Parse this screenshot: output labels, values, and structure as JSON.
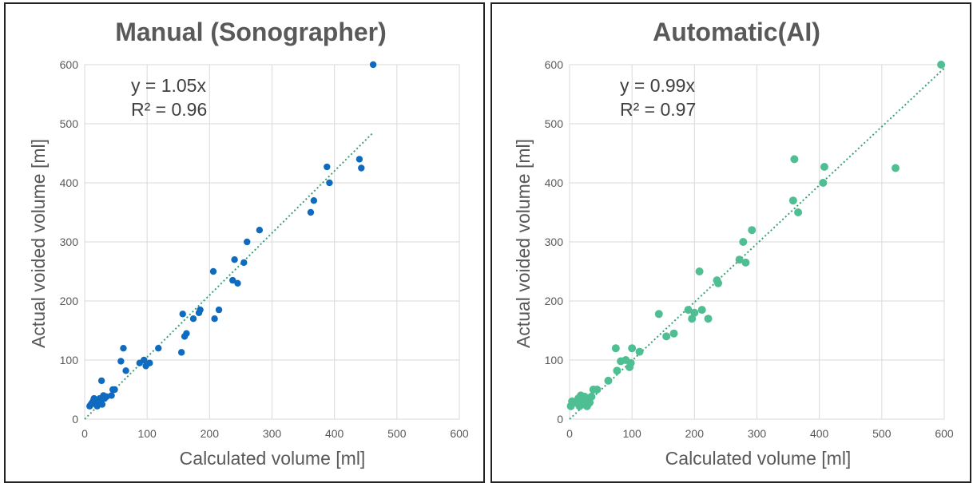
{
  "chart_data": [
    {
      "type": "scatter",
      "title": "Manual (Sonographer)",
      "xlabel": "Calculated volume [ml]",
      "ylabel": "Actual voided volume [ml]",
      "xlim": [
        0,
        600
      ],
      "ylim": [
        0,
        600
      ],
      "xticks": [
        "0",
        "100",
        "200",
        "300",
        "400",
        "500",
        "600"
      ],
      "yticks": [
        "0",
        "100",
        "200",
        "300",
        "400",
        "500",
        "600"
      ],
      "grid": true,
      "color": "#0f6bbf",
      "trendline": {
        "slope": 1.05,
        "x_range": [
          0,
          460
        ],
        "color": "#3aa07a"
      },
      "equation": "y = 1.05x",
      "r_squared": "R² = 0.96",
      "points": [
        [
          8,
          22
        ],
        [
          10,
          25
        ],
        [
          12,
          28
        ],
        [
          14,
          32
        ],
        [
          15,
          35
        ],
        [
          17,
          30
        ],
        [
          18,
          25
        ],
        [
          20,
          22
        ],
        [
          22,
          30
        ],
        [
          24,
          35
        ],
        [
          25,
          28
        ],
        [
          27,
          65
        ],
        [
          28,
          25
        ],
        [
          30,
          40
        ],
        [
          32,
          35
        ],
        [
          35,
          38
        ],
        [
          43,
          40
        ],
        [
          45,
          50
        ],
        [
          48,
          50
        ],
        [
          58,
          98
        ],
        [
          62,
          120
        ],
        [
          66,
          82
        ],
        [
          88,
          95
        ],
        [
          95,
          100
        ],
        [
          98,
          90
        ],
        [
          104,
          95
        ],
        [
          118,
          120
        ],
        [
          155,
          113
        ],
        [
          157,
          178
        ],
        [
          160,
          140
        ],
        [
          163,
          145
        ],
        [
          174,
          170
        ],
        [
          183,
          180
        ],
        [
          185,
          185
        ],
        [
          206,
          250
        ],
        [
          208,
          170
        ],
        [
          215,
          185
        ],
        [
          237,
          235
        ],
        [
          240,
          270
        ],
        [
          245,
          230
        ],
        [
          255,
          265
        ],
        [
          260,
          300
        ],
        [
          280,
          320
        ],
        [
          362,
          350
        ],
        [
          367,
          370
        ],
        [
          388,
          427
        ],
        [
          392,
          400
        ],
        [
          440,
          440
        ],
        [
          443,
          425
        ],
        [
          462,
          600
        ]
      ]
    },
    {
      "type": "scatter",
      "title": "Automatic(AI)",
      "xlabel": "Calculated volume [ml]",
      "ylabel": "Actual voided volume [ml]",
      "xlim": [
        0,
        600
      ],
      "ylim": [
        0,
        600
      ],
      "xticks": [
        "0",
        "100",
        "200",
        "300",
        "400",
        "500",
        "600"
      ],
      "yticks": [
        "0",
        "100",
        "200",
        "300",
        "400",
        "500",
        "600"
      ],
      "grid": true,
      "color": "#4fbf93",
      "trendline": {
        "slope": 0.99,
        "x_range": [
          0,
          600
        ],
        "color": "#3aa07a"
      },
      "equation": "y = 0.99x",
      "r_squared": "R² = 0.97",
      "points": [
        [
          2,
          22
        ],
        [
          4,
          30
        ],
        [
          10,
          28
        ],
        [
          14,
          35
        ],
        [
          16,
          22
        ],
        [
          18,
          40
        ],
        [
          20,
          32
        ],
        [
          22,
          25
        ],
        [
          24,
          38
        ],
        [
          26,
          30
        ],
        [
          28,
          22
        ],
        [
          30,
          35
        ],
        [
          32,
          28
        ],
        [
          35,
          38
        ],
        [
          38,
          50
        ],
        [
          44,
          50
        ],
        [
          62,
          65
        ],
        [
          74,
          120
        ],
        [
          76,
          82
        ],
        [
          82,
          98
        ],
        [
          90,
          100
        ],
        [
          96,
          88
        ],
        [
          98,
          95
        ],
        [
          100,
          120
        ],
        [
          112,
          114
        ],
        [
          143,
          178
        ],
        [
          155,
          140
        ],
        [
          167,
          145
        ],
        [
          190,
          185
        ],
        [
          196,
          170
        ],
        [
          200,
          180
        ],
        [
          208,
          250
        ],
        [
          212,
          185
        ],
        [
          222,
          170
        ],
        [
          236,
          235
        ],
        [
          238,
          230
        ],
        [
          272,
          270
        ],
        [
          278,
          300
        ],
        [
          282,
          265
        ],
        [
          292,
          320
        ],
        [
          358,
          370
        ],
        [
          360,
          440
        ],
        [
          366,
          350
        ],
        [
          406,
          400
        ],
        [
          408,
          427
        ],
        [
          522,
          425
        ],
        [
          595,
          600
        ]
      ]
    }
  ]
}
